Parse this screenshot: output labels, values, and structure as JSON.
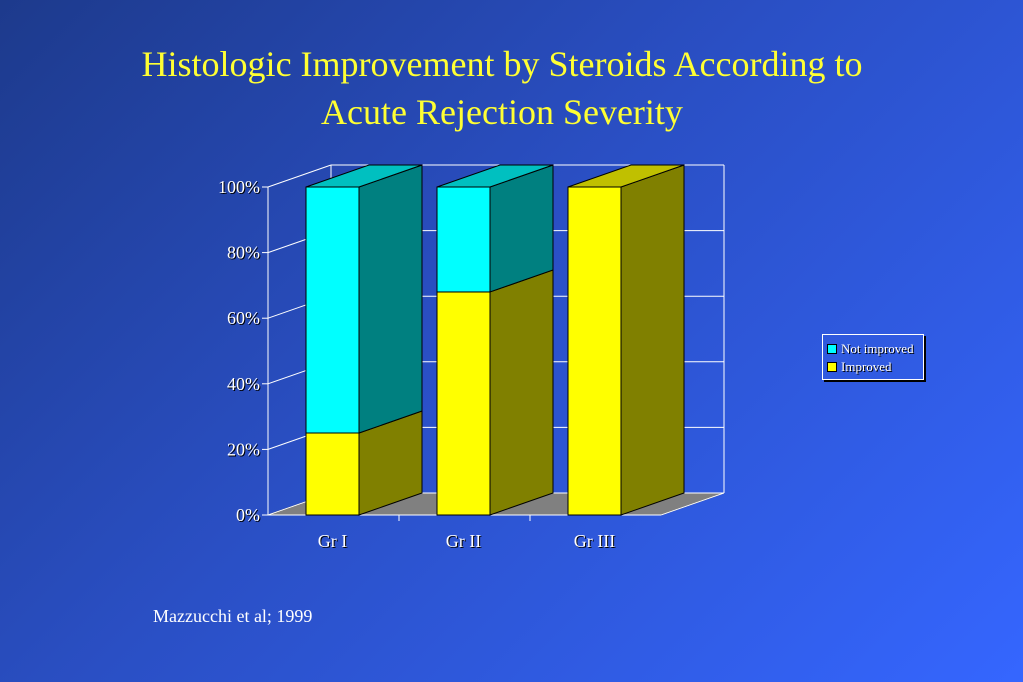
{
  "slide": {
    "title_line1": "Histologic Improvement by Steroids According to",
    "title_line2": "Acute Rejection Severity",
    "citation": "Mazzucchi et al; 1999"
  },
  "chart_data": {
    "type": "bar",
    "stacked": true,
    "three_d": true,
    "categories": [
      "Gr I",
      "Gr II",
      "Gr III"
    ],
    "series": [
      {
        "name": "Improved",
        "values": [
          25,
          68,
          100
        ],
        "color": "#ffff00",
        "side_color": "#808000"
      },
      {
        "name": "Not improved",
        "values": [
          75,
          32,
          0
        ],
        "color": "#00ffff",
        "side_color": "#008080"
      }
    ],
    "y_ticks": [
      "0%",
      "20%",
      "40%",
      "60%",
      "80%",
      "100%"
    ],
    "ylim": [
      0,
      100
    ],
    "grid": true,
    "legend_placement": "right"
  }
}
